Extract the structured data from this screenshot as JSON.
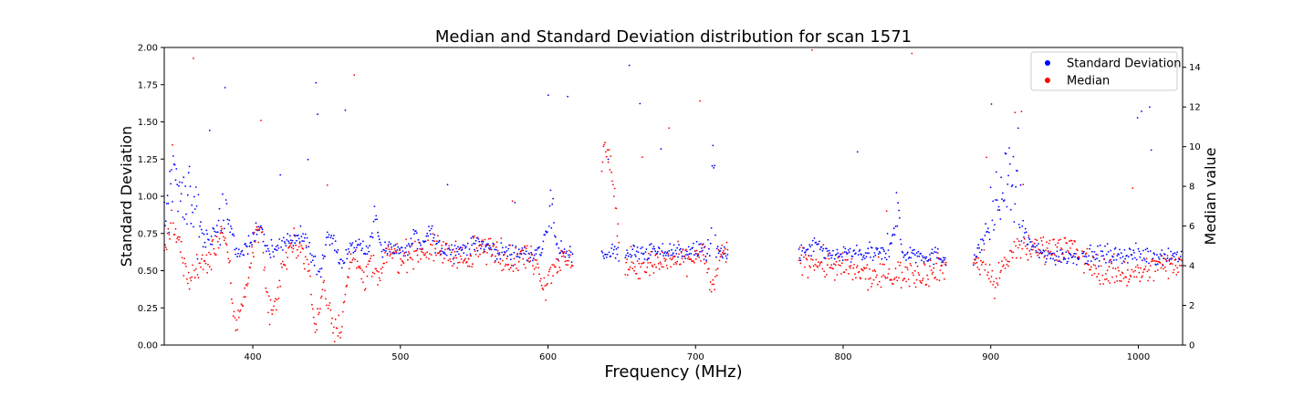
{
  "chart_data": {
    "type": "scatter",
    "title": "Median and Standard Deviation distribution for scan 1571",
    "xlabel": "Frequency (MHz)",
    "ylabel_left": "Standard Deviation",
    "ylabel_right": "Median value",
    "xlim": [
      340,
      1030
    ],
    "ylim_left": [
      0,
      2.0
    ],
    "ylim_right": [
      0,
      15
    ],
    "x_ticks": [
      400,
      500,
      600,
      700,
      800,
      900,
      1000
    ],
    "y_left_ticks": [
      0.0,
      0.25,
      0.5,
      0.75,
      1.0,
      1.25,
      1.5,
      1.75,
      2.0
    ],
    "y_left_tick_labels": [
      "0.00",
      "0.25",
      "0.50",
      "0.75",
      "1.00",
      "1.25",
      "1.50",
      "1.75",
      "2.00"
    ],
    "y_right_ticks": [
      0,
      2,
      4,
      6,
      8,
      10,
      12,
      14
    ],
    "grid": false,
    "legend_position": "top-right",
    "series": [
      {
        "name": "Standard Deviation",
        "axis": "left",
        "color": "#0000ff",
        "profile": [
          [
            340,
            0.95
          ],
          [
            350,
            1.05
          ],
          [
            360,
            0.95
          ],
          [
            366,
            0.72
          ],
          [
            372,
            0.7
          ],
          [
            380,
            0.85
          ],
          [
            384,
            0.78
          ],
          [
            390,
            0.6
          ],
          [
            400,
            0.7
          ],
          [
            405,
            0.8
          ],
          [
            410,
            0.62
          ],
          [
            420,
            0.68
          ],
          [
            430,
            0.72
          ],
          [
            436,
            0.73
          ],
          [
            440,
            0.6
          ],
          [
            446,
            0.45
          ],
          [
            450,
            0.72
          ],
          [
            455,
            0.7
          ],
          [
            460,
            0.52
          ],
          [
            466,
            0.67
          ],
          [
            472,
            0.67
          ],
          [
            478,
            0.62
          ],
          [
            483,
            0.88
          ],
          [
            487,
            0.66
          ],
          [
            492,
            0.64
          ],
          [
            500,
            0.64
          ],
          [
            505,
            0.64
          ],
          [
            510,
            0.74
          ],
          [
            515,
            0.64
          ],
          [
            520,
            0.78
          ],
          [
            525,
            0.65
          ],
          [
            535,
            0.64
          ],
          [
            545,
            0.65
          ],
          [
            555,
            0.68
          ],
          [
            565,
            0.63
          ],
          [
            580,
            0.62
          ],
          [
            595,
            0.62
          ],
          [
            602,
            0.9
          ],
          [
            607,
            0.62
          ],
          [
            620,
            0.62
          ],
          [
            640,
            0.62
          ],
          [
            660,
            0.62
          ],
          [
            680,
            0.63
          ],
          [
            700,
            0.63
          ],
          [
            710,
            0.62
          ],
          [
            712,
            1.3
          ],
          [
            714,
            0.62
          ],
          [
            740,
            0.62
          ],
          [
            770,
            0.6
          ],
          [
            783,
            0.68
          ],
          [
            787,
            0.6
          ],
          [
            800,
            0.61
          ],
          [
            830,
            0.61
          ],
          [
            837,
            0.9
          ],
          [
            840,
            0.62
          ],
          [
            870,
            0.59
          ],
          [
            890,
            0.59
          ],
          [
            905,
            0.95
          ],
          [
            912,
            1.1
          ],
          [
            918,
            0.9
          ],
          [
            925,
            0.7
          ],
          [
            935,
            0.6
          ],
          [
            960,
            0.6
          ],
          [
            990,
            0.61
          ],
          [
            1010,
            0.6
          ],
          [
            1030,
            0.6
          ]
        ],
        "scatter_amount": 0.03
      },
      {
        "name": "Median",
        "axis": "right",
        "color": "#ff0000",
        "profile": [
          [
            340,
            4.8
          ],
          [
            345,
            6.0
          ],
          [
            350,
            5.2
          ],
          [
            356,
            3.2
          ],
          [
            362,
            3.8
          ],
          [
            370,
            4.2
          ],
          [
            380,
            5.8
          ],
          [
            384,
            4.0
          ],
          [
            388,
            0.8
          ],
          [
            392,
            2.0
          ],
          [
            397,
            3.5
          ],
          [
            402,
            5.5
          ],
          [
            406,
            6.0
          ],
          [
            410,
            2.0
          ],
          [
            415,
            1.8
          ],
          [
            420,
            4.0
          ],
          [
            425,
            4.8
          ],
          [
            432,
            5.2
          ],
          [
            438,
            4.0
          ],
          [
            442,
            0.6
          ],
          [
            448,
            3.0
          ],
          [
            455,
            1.0
          ],
          [
            460,
            1.0
          ],
          [
            466,
            4.2
          ],
          [
            472,
            4.5
          ],
          [
            476,
            3.0
          ],
          [
            480,
            4.2
          ],
          [
            486,
            3.2
          ],
          [
            492,
            4.8
          ],
          [
            500,
            4.3
          ],
          [
            505,
            4.6
          ],
          [
            515,
            4.8
          ],
          [
            525,
            4.8
          ],
          [
            535,
            4.6
          ],
          [
            540,
            4.7
          ],
          [
            545,
            3.8
          ],
          [
            550,
            4.8
          ],
          [
            555,
            4.8
          ],
          [
            565,
            4.8
          ],
          [
            575,
            4.2
          ],
          [
            585,
            4.5
          ],
          [
            592,
            4.3
          ],
          [
            598,
            3.0
          ],
          [
            605,
            4.2
          ],
          [
            615,
            4.2
          ],
          [
            625,
            4.5
          ],
          [
            638,
            10.0
          ],
          [
            642,
            9.5
          ],
          [
            650,
            3.9
          ],
          [
            670,
            4.0
          ],
          [
            690,
            4.3
          ],
          [
            705,
            4.6
          ],
          [
            712,
            2.6
          ],
          [
            716,
            4.5
          ],
          [
            740,
            4.6
          ],
          [
            770,
            4.4
          ],
          [
            790,
            4.0
          ],
          [
            805,
            3.8
          ],
          [
            820,
            3.4
          ],
          [
            840,
            3.6
          ],
          [
            855,
            3.6
          ],
          [
            870,
            4.0
          ],
          [
            895,
            4.2
          ],
          [
            903,
            3.0
          ],
          [
            910,
            4.3
          ],
          [
            920,
            4.8
          ],
          [
            935,
            5.0
          ],
          [
            955,
            4.9
          ],
          [
            970,
            3.9
          ],
          [
            985,
            3.6
          ],
          [
            1000,
            3.6
          ],
          [
            1015,
            4.0
          ],
          [
            1030,
            4.2
          ]
        ],
        "scatter_amount": 0.35
      }
    ],
    "gaps": [
      [
        617,
        636
      ],
      [
        648,
        652
      ],
      [
        722,
        770
      ],
      [
        870,
        888
      ],
      [
        960,
        962
      ]
    ]
  }
}
